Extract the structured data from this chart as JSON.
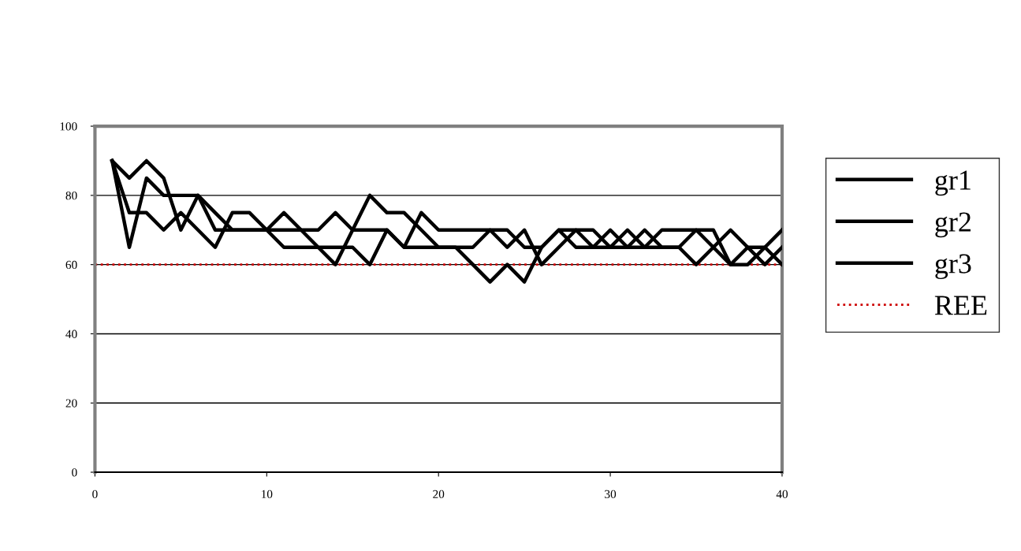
{
  "chart_data": {
    "type": "line",
    "x": [
      1,
      2,
      3,
      4,
      5,
      6,
      7,
      8,
      9,
      10,
      11,
      12,
      13,
      14,
      15,
      16,
      17,
      18,
      19,
      20,
      21,
      22,
      23,
      24,
      25,
      26,
      27,
      28,
      29,
      30,
      31,
      32,
      33,
      34,
      35,
      36,
      37,
      38,
      39,
      40
    ],
    "series": [
      {
        "name": "gr1",
        "color": "#000000",
        "values": [
          90,
          85,
          90,
          85,
          70,
          80,
          70,
          70,
          70,
          70,
          75,
          70,
          65,
          65,
          65,
          60,
          70,
          65,
          65,
          65,
          65,
          65,
          70,
          65,
          70,
          60,
          65,
          70,
          65,
          70,
          65,
          70,
          65,
          65,
          70,
          65,
          70,
          65,
          65,
          60
        ]
      },
      {
        "name": "gr2",
        "color": "#000000",
        "values": [
          90,
          65,
          85,
          80,
          80,
          80,
          75,
          70,
          70,
          70,
          65,
          65,
          65,
          60,
          70,
          80,
          75,
          75,
          70,
          65,
          65,
          60,
          55,
          60,
          55,
          65,
          70,
          65,
          65,
          65,
          70,
          65,
          65,
          65,
          60,
          65,
          60,
          65,
          60,
          65
        ]
      },
      {
        "name": "gr3",
        "color": "#000000",
        "values": [
          90,
          75,
          75,
          70,
          75,
          70,
          65,
          75,
          75,
          70,
          70,
          70,
          70,
          75,
          70,
          70,
          70,
          65,
          75,
          70,
          70,
          70,
          70,
          70,
          65,
          65,
          70,
          70,
          70,
          65,
          65,
          65,
          70,
          70,
          70,
          70,
          60,
          60,
          65,
          70
        ]
      }
    ],
    "ref_lines": [
      {
        "axis": "y",
        "value": 60,
        "label": "REE",
        "color": "#cc0000",
        "line_style": "dotted"
      }
    ],
    "xlim": [
      0,
      40
    ],
    "xticks": [
      0,
      10,
      20,
      30,
      40
    ],
    "ylim": [
      0,
      100
    ],
    "yticks": [
      0,
      20,
      40,
      60,
      80,
      100
    ],
    "grid": "y",
    "legend": "right",
    "marker": "none",
    "line_style": "solid"
  }
}
